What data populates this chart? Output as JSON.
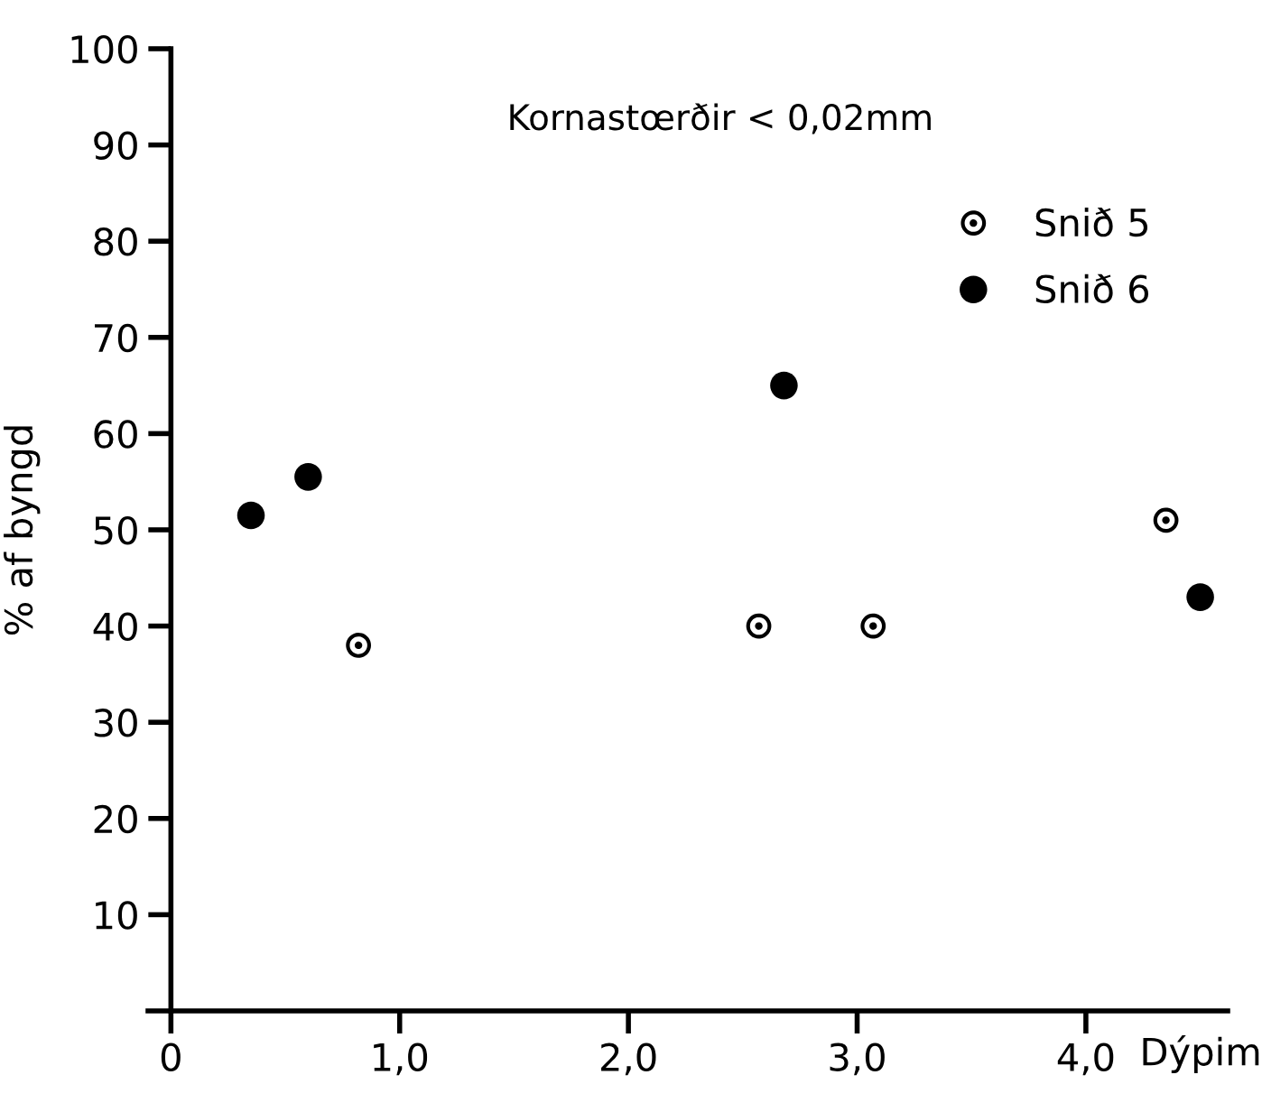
{
  "chart_data": {
    "type": "scatter",
    "title": "Kornastœrðir < 0,02mm",
    "xlabel": "Dýpim",
    "ylabel": "% af byngd",
    "xlim": [
      -0.1,
      4.62
    ],
    "ylim": [
      0,
      100
    ],
    "xticks": [
      {
        "value": 0,
        "label": "0"
      },
      {
        "value": 1,
        "label": "1,0"
      },
      {
        "value": 2,
        "label": "2,0"
      },
      {
        "value": 3,
        "label": "3,0"
      },
      {
        "value": 4,
        "label": "4,0"
      }
    ],
    "yticks": [
      10,
      20,
      30,
      40,
      50,
      60,
      70,
      80,
      90,
      100
    ],
    "grid": false,
    "legend": "top right",
    "series": [
      {
        "name": "Snið 5",
        "color": "#000000",
        "marker": "circle",
        "x": [
          0.82,
          2.57,
          3.07,
          4.35
        ],
        "values": [
          38,
          40,
          40,
          51
        ]
      },
      {
        "name": "Snið 6",
        "color": "#000000",
        "marker": "circle",
        "x": [
          0.35,
          0.6,
          2.68,
          4.5
        ],
        "values": [
          51.5,
          55.5,
          65,
          43
        ]
      }
    ]
  }
}
